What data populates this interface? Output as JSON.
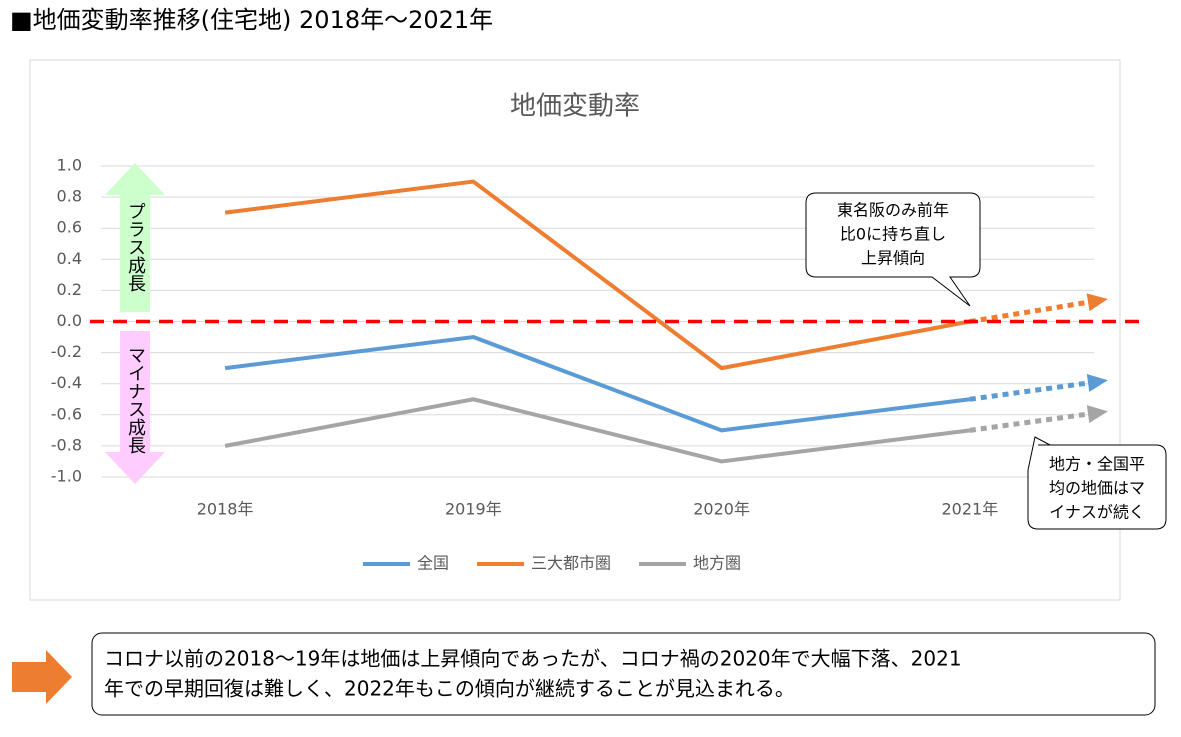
{
  "header": {
    "title": "■地価変動率推移(住宅地)  2018年～2021年"
  },
  "chart_data": {
    "type": "line",
    "title": "地価変動率",
    "categories": [
      "2018年",
      "2019年",
      "2020年",
      "2021年"
    ],
    "series": [
      {
        "name": "全国",
        "color": "#5b9bd5",
        "values": [
          -0.3,
          -0.1,
          -0.7,
          -0.5
        ],
        "projection": -0.39
      },
      {
        "name": "三大都市圏",
        "color": "#ed7d31",
        "values": [
          0.7,
          0.9,
          -0.3,
          0.0
        ],
        "projection": 0.13
      },
      {
        "name": "地方圏",
        "color": "#a5a5a5",
        "values": [
          -0.8,
          -0.5,
          -0.9,
          -0.7
        ],
        "projection": -0.59
      }
    ],
    "ylim": [
      -1,
      1
    ],
    "yticks": [
      {
        "value": 1,
        "label": "1.0"
      },
      0.8,
      0.6,
      0.4,
      0.2,
      {
        "value": 0,
        "label": "0.0"
      },
      -0.2,
      -0.4,
      -0.6,
      -0.8,
      {
        "value": -1,
        "label": "-1.0"
      }
    ],
    "grid": true,
    "reference_line": {
      "value": 0,
      "color": "#ff0000"
    },
    "growth_labels": {
      "plus": "プラス成長",
      "minus": "マイナス成長"
    },
    "annotations": [
      {
        "lines": [
          "東名阪のみ前年",
          "比0に持ち直し",
          "上昇傾向"
        ]
      },
      {
        "lines": [
          "地方・全国平",
          "均の地価はマ",
          "イナスが続く"
        ]
      }
    ]
  },
  "summary": {
    "lines": [
      "コロナ以前の2018～19年は地価は上昇傾向であったが、コロナ禍の2020年で大幅下落、2021",
      "年での早期回復は難しく、2022年もこの傾向が継続することが見込まれる。"
    ]
  }
}
